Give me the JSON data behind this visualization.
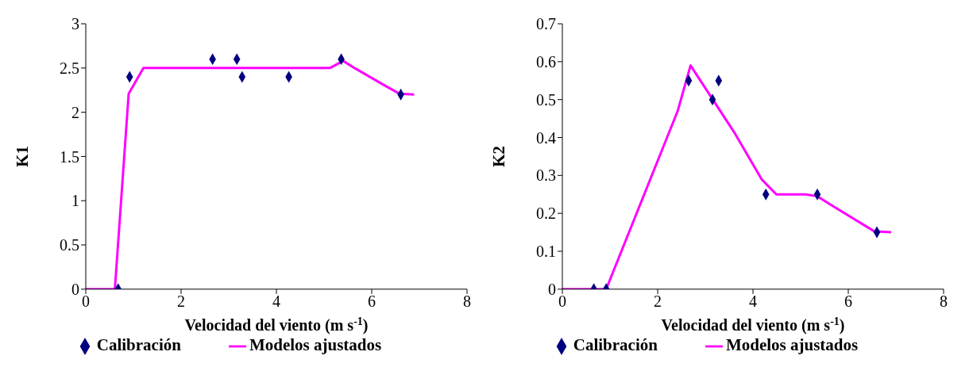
{
  "chart_data": [
    {
      "type": "scatter",
      "xlabel": "Velocidad del viento (m s$^{-1}$)",
      "ylabel": "K1",
      "xlim": [
        0,
        8
      ],
      "xticks": [
        0,
        2,
        4,
        6,
        8
      ],
      "ylim": [
        0,
        3
      ],
      "yticks": [
        0,
        0.5,
        1,
        1.5,
        2,
        2.5,
        3
      ],
      "grid": false,
      "legend": "bottom",
      "series": [
        {
          "name": "Calibración",
          "marker": "diamond",
          "color": "#000080",
          "x": [
            0.68,
            0.92,
            2.66,
            3.17,
            3.28,
            4.26,
            5.36,
            6.61
          ],
          "values": [
            0,
            2.4,
            2.6,
            2.6,
            2.4,
            2.4,
            2.6,
            2.2
          ]
        },
        {
          "name": "Modelos ajustados",
          "type": "line",
          "marker": "none",
          "color": "#ff00ff",
          "x": [
            0,
            0.61,
            0.9,
            1.21,
            5.12,
            5.4,
            5.67,
            6.28,
            6.58,
            6.89
          ],
          "values": [
            0,
            0,
            2.21,
            2.5,
            2.5,
            2.58,
            2.49,
            2.3,
            2.21,
            2.2
          ]
        }
      ]
    },
    {
      "type": "scatter",
      "xlabel": "Velocidad del viento (m s$^{-1}$)",
      "ylabel": "K2",
      "xlim": [
        0,
        8
      ],
      "xticks": [
        0,
        2,
        4,
        6,
        8
      ],
      "ylim": [
        0,
        0.7
      ],
      "yticks": [
        0,
        0.1,
        0.2,
        0.3,
        0.4,
        0.5,
        0.6,
        0.7
      ],
      "grid": false,
      "legend": "bottom",
      "series": [
        {
          "name": "Calibración",
          "marker": "diamond",
          "color": "#000080",
          "x": [
            0.66,
            0.92,
            2.65,
            3.15,
            3.28,
            4.27,
            5.35,
            6.6
          ],
          "values": [
            0,
            0,
            0.55,
            0.5,
            0.55,
            0.25,
            0.25,
            0.15
          ]
        },
        {
          "name": "Modelos ajustados",
          "type": "line",
          "marker": "none",
          "color": "#ff00ff",
          "x": [
            0,
            0.92,
            2.42,
            2.69,
            3.6,
            4.18,
            4.49,
            5.11,
            5.35,
            5.69,
            6.54,
            6.9
          ],
          "values": [
            0,
            0,
            0.47,
            0.59,
            0.415,
            0.29,
            0.25,
            0.25,
            0.245,
            0.218,
            0.153,
            0.15
          ]
        }
      ]
    }
  ]
}
